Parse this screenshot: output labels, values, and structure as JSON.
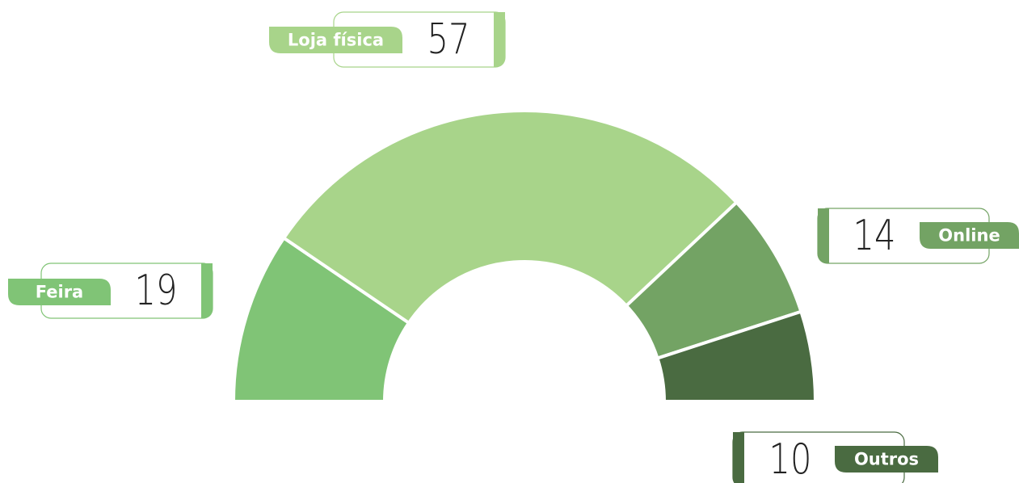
{
  "chart_data": {
    "type": "half-donut",
    "categories": [
      "Feira",
      "Loja física",
      "Online",
      "Outros"
    ],
    "values": [
      19,
      57,
      14,
      10
    ],
    "colors": [
      "#80c476",
      "#a8d48a",
      "#73a364",
      "#4a6b41"
    ]
  }
}
